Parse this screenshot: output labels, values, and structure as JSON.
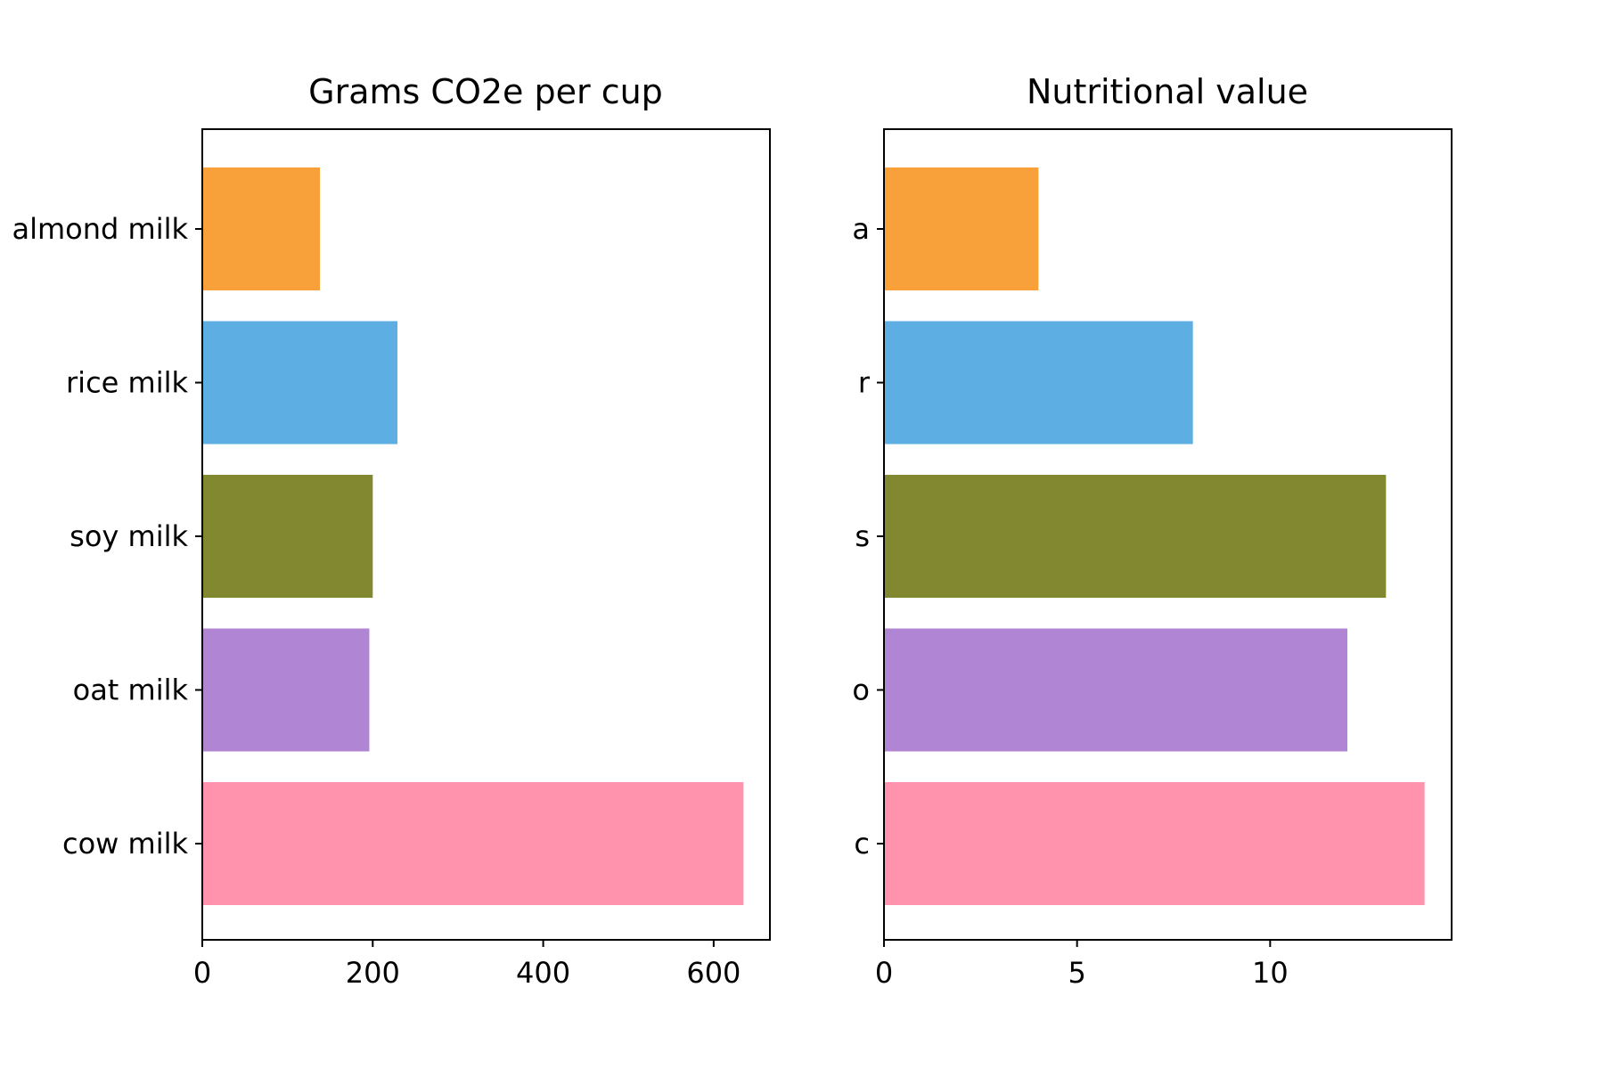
{
  "chart_data": [
    {
      "type": "bar",
      "orientation": "horizontal",
      "title": "Grams CO2e per cup",
      "categories": [
        "almond milk",
        "rice milk",
        "soy milk",
        "oat milk",
        "cow milk"
      ],
      "values": [
        138,
        229,
        200,
        196,
        635
      ],
      "colors": [
        "#f8a03a",
        "#5daee3",
        "#82882f",
        "#b086d4",
        "#ff93ad"
      ],
      "xlim": [
        0,
        666
      ],
      "xticks": [
        0,
        200,
        400,
        600
      ],
      "xtick_labels": [
        "0",
        "200",
        "400",
        "600"
      ]
    },
    {
      "type": "bar",
      "orientation": "horizontal",
      "title": "Nutritional value",
      "categories": [
        "a",
        "r",
        "s",
        "o",
        "c"
      ],
      "values": [
        4,
        8,
        13,
        12,
        14
      ],
      "colors": [
        "#f8a03a",
        "#5daee3",
        "#82882f",
        "#b086d4",
        "#ff93ad"
      ],
      "xlim": [
        0,
        14.7
      ],
      "xticks": [
        0,
        5,
        10
      ],
      "xtick_labels": [
        "0",
        "5",
        "10"
      ]
    }
  ]
}
